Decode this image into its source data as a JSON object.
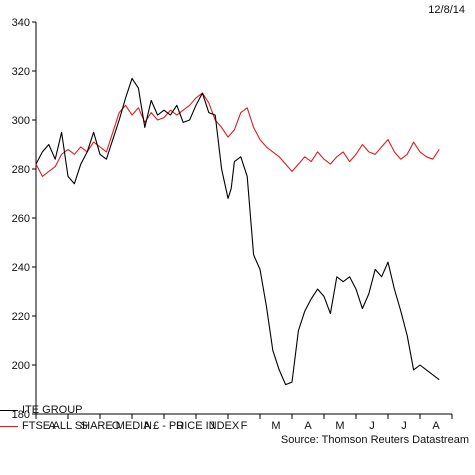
{
  "date_label": "12/8/14",
  "source": "Source: Thomson Reuters Datastream",
  "chart_data": {
    "type": "line",
    "y_ticks": [
      180,
      200,
      220,
      240,
      260,
      280,
      300,
      320,
      340
    ],
    "ylim": [
      180,
      340
    ],
    "month_labels": [
      "A",
      "S",
      "O",
      "N",
      "D",
      "J",
      "F",
      "M",
      "A",
      "M",
      "J",
      "J",
      "A"
    ],
    "x_range": [
      0,
      13
    ],
    "grid": false,
    "legend_position": "bottom-left",
    "series": [
      {
        "name": "ITE GROUP",
        "color": "#000000",
        "x": [
          0.0,
          0.2,
          0.4,
          0.6,
          0.8,
          1.0,
          1.2,
          1.4,
          1.6,
          1.8,
          2.0,
          2.2,
          2.4,
          2.6,
          2.8,
          3.0,
          3.2,
          3.4,
          3.6,
          3.8,
          4.0,
          4.2,
          4.4,
          4.6,
          4.8,
          5.0,
          5.2,
          5.4,
          5.6,
          5.8,
          6.0,
          6.1,
          6.2,
          6.4,
          6.6,
          6.8,
          7.0,
          7.2,
          7.4,
          7.6,
          7.8,
          8.0,
          8.2,
          8.4,
          8.6,
          8.8,
          9.0,
          9.2,
          9.4,
          9.6,
          9.8,
          10.0,
          10.2,
          10.4,
          10.6,
          10.8,
          11.0,
          11.2,
          11.4,
          11.6,
          11.8,
          12.0,
          12.2,
          12.4,
          12.6
        ],
        "values": [
          282,
          287,
          290,
          284,
          295,
          277,
          274,
          282,
          287,
          295,
          286,
          284,
          292,
          300,
          309,
          317,
          313,
          297,
          308,
          302,
          304,
          302,
          306,
          299,
          300,
          306,
          311,
          303,
          302,
          280,
          268,
          272,
          283,
          285,
          277,
          245,
          239,
          224,
          206,
          198,
          192,
          193,
          214,
          222,
          227,
          231,
          228,
          221,
          236,
          234,
          236,
          231,
          223,
          229,
          239,
          236,
          242,
          231,
          222,
          212,
          198,
          200,
          198,
          196,
          194
        ]
      },
      {
        "name": "FTSE ALL SHARE MEDIA £ - PRICE INDEX",
        "color": "#dd1f1f",
        "x": [
          0.0,
          0.2,
          0.4,
          0.6,
          0.8,
          1.0,
          1.2,
          1.4,
          1.6,
          1.8,
          2.0,
          2.2,
          2.4,
          2.6,
          2.8,
          3.0,
          3.2,
          3.4,
          3.6,
          3.8,
          4.0,
          4.2,
          4.4,
          4.6,
          4.8,
          5.0,
          5.2,
          5.4,
          5.6,
          5.8,
          6.0,
          6.2,
          6.4,
          6.6,
          6.8,
          7.0,
          7.2,
          7.4,
          7.6,
          7.8,
          8.0,
          8.2,
          8.4,
          8.6,
          8.8,
          9.0,
          9.2,
          9.4,
          9.6,
          9.8,
          10.0,
          10.2,
          10.4,
          10.6,
          10.8,
          11.0,
          11.2,
          11.4,
          11.6,
          11.8,
          12.0,
          12.2,
          12.4,
          12.6
        ],
        "values": [
          282,
          277,
          279,
          281,
          286,
          288,
          286,
          289,
          287,
          291,
          289,
          287,
          295,
          303,
          306,
          302,
          305,
          299,
          303,
          300,
          301,
          304,
          302,
          304,
          306,
          309,
          311,
          307,
          300,
          297,
          293,
          296,
          303,
          305,
          297,
          292,
          289,
          287,
          285,
          282,
          279,
          282,
          285,
          283,
          287,
          284,
          282,
          285,
          287,
          283,
          286,
          290,
          287,
          286,
          289,
          292,
          287,
          284,
          286,
          291,
          287,
          285,
          284,
          288
        ]
      }
    ]
  }
}
